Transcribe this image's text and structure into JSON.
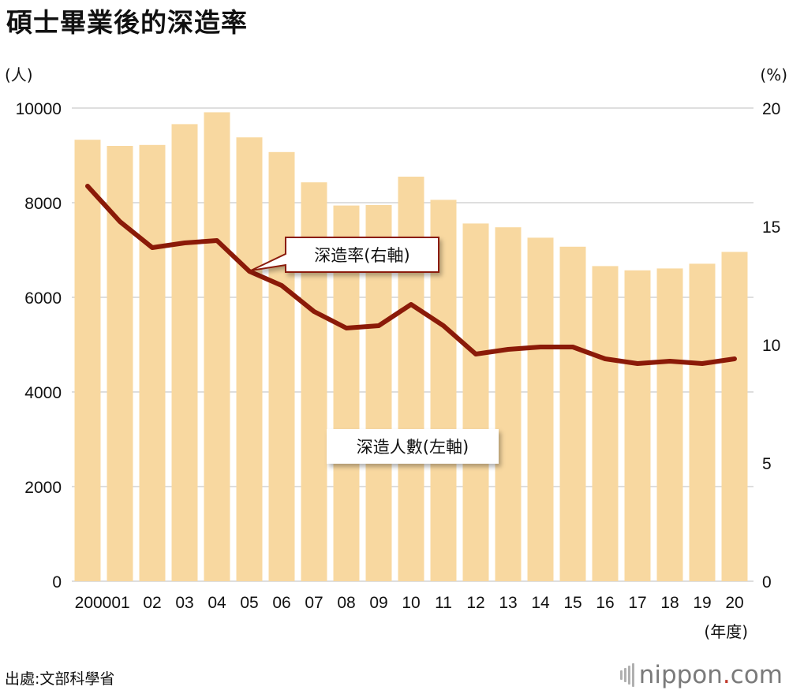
{
  "chart_data": {
    "type": "bar+line",
    "title": "碩士畢業後的深造率",
    "categories": [
      "2000",
      "01",
      "02",
      "03",
      "04",
      "05",
      "06",
      "07",
      "08",
      "09",
      "10",
      "11",
      "12",
      "13",
      "14",
      "15",
      "16",
      "17",
      "18",
      "19",
      "20"
    ],
    "series": [
      {
        "name": "深造人數(左軸)",
        "type": "bar",
        "axis": "left",
        "color": "#f8d8a0",
        "values": [
          9330,
          9200,
          9220,
          9660,
          9910,
          9380,
          9070,
          8430,
          7940,
          7950,
          8550,
          8060,
          7560,
          7480,
          7260,
          7070,
          6660,
          6570,
          6610,
          6710,
          6960
        ]
      },
      {
        "name": "深造率(右軸)",
        "type": "line",
        "axis": "right",
        "color": "#8b1a08",
        "values": [
          16.7,
          15.2,
          14.1,
          14.3,
          14.4,
          13.1,
          12.5,
          11.4,
          10.7,
          10.8,
          11.7,
          10.8,
          9.6,
          9.8,
          9.9,
          9.9,
          9.4,
          9.2,
          9.3,
          9.2,
          9.4
        ]
      }
    ],
    "y_left": {
      "label": "(人)",
      "range": [
        0,
        10000
      ],
      "ticks": [
        "0",
        "2000",
        "4000",
        "6000",
        "8000",
        "10000"
      ]
    },
    "y_right": {
      "label": "(%)",
      "range": [
        0,
        20
      ],
      "ticks": [
        "0",
        "5",
        "10",
        "15",
        "20"
      ]
    },
    "xlabel": "(年度)",
    "grid": true,
    "annotations": {
      "line_label": "深造率(右軸)",
      "bar_label": "深造人數(左軸)"
    }
  },
  "source": "出處:文部科學省",
  "logo": {
    "name": "nippon",
    "dot": ".",
    "tld": "com"
  }
}
